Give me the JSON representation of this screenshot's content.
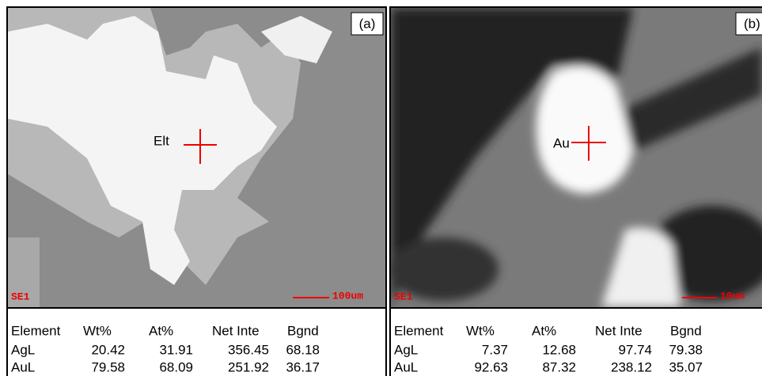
{
  "panels": [
    {
      "label": "(a)",
      "point_label": "Elt",
      "detector": "SE1",
      "scale": "100um",
      "table": {
        "header": [
          "Element",
          "Wt%",
          "At%",
          "Net Inte",
          "Bgnd"
        ],
        "rows": [
          [
            "AgL",
            "20.42",
            "31.91",
            "356.45",
            "68.18"
          ],
          [
            "AuL",
            "79.58",
            "68.09",
            "251.92",
            "36.17"
          ]
        ]
      }
    },
    {
      "label": "(b)",
      "point_label": "Au",
      "detector": "SE1",
      "scale": "10um",
      "table": {
        "header": [
          "Element",
          "Wt%",
          "At%",
          "Net Inte",
          "Bgnd"
        ],
        "rows": [
          [
            "AgL",
            "7.37",
            "12.68",
            "97.74",
            "79.38"
          ],
          [
            "AuL",
            "92.63",
            "87.32",
            "238.12",
            "35.07"
          ]
        ]
      }
    }
  ]
}
